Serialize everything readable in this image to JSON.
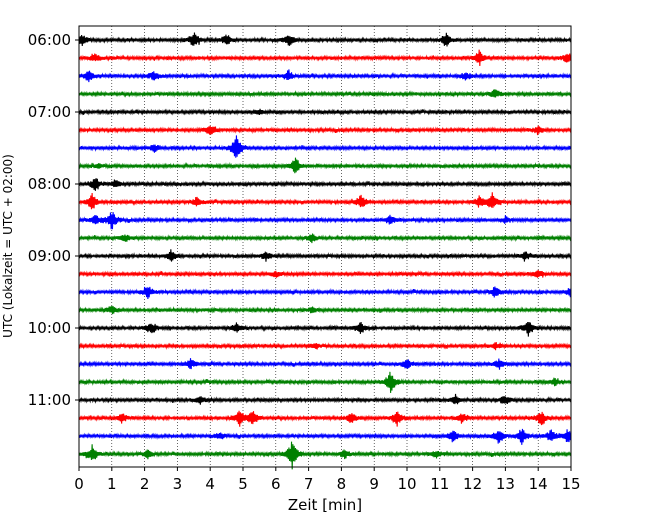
{
  "chart_data": {
    "type": "line",
    "subtype": "helicorder",
    "title": "",
    "xlabel": "Zeit  [min]",
    "ylabel": "UTC (Lokalzeit = UTC + 02:00)",
    "xlim": [
      0,
      15
    ],
    "x_ticks": [
      0,
      1,
      2,
      3,
      4,
      5,
      6,
      7,
      8,
      9,
      10,
      11,
      12,
      13,
      14,
      15
    ],
    "x_tick_labels": [
      "0",
      "1",
      "2",
      "3",
      "4",
      "5",
      "6",
      "7",
      "8",
      "9",
      "10",
      "11",
      "12",
      "13",
      "14",
      "15"
    ],
    "vertical_grid": true,
    "grid_style": "dotted",
    "trace_count": 24,
    "trace_interval_minutes": 15,
    "first_trace_time": "06:00",
    "trace_colors": [
      "#000000",
      "#ff0000",
      "#0000ff",
      "#008000"
    ],
    "y_tick_labels": [
      {
        "trace": 0,
        "label": "06:00"
      },
      {
        "trace": 4,
        "label": "07:00"
      },
      {
        "trace": 8,
        "label": "08:00"
      },
      {
        "trace": 12,
        "label": "09:00"
      },
      {
        "trace": 16,
        "label": "10:00"
      },
      {
        "trace": 20,
        "label": "11:00"
      }
    ],
    "events": [
      {
        "trace": 0,
        "x": 0.1,
        "amp": 0.35
      },
      {
        "trace": 0,
        "x": 3.5,
        "amp": 0.5
      },
      {
        "trace": 0,
        "x": 4.5,
        "amp": 0.35
      },
      {
        "trace": 0,
        "x": 6.4,
        "amp": 0.4
      },
      {
        "trace": 0,
        "x": 11.2,
        "amp": 0.45
      },
      {
        "trace": 1,
        "x": 0.5,
        "amp": 0.25
      },
      {
        "trace": 1,
        "x": 12.2,
        "amp": 0.5
      },
      {
        "trace": 1,
        "x": 14.9,
        "amp": 0.35
      },
      {
        "trace": 2,
        "x": 0.3,
        "amp": 0.35
      },
      {
        "trace": 2,
        "x": 2.3,
        "amp": 0.3
      },
      {
        "trace": 2,
        "x": 6.4,
        "amp": 0.35
      },
      {
        "trace": 2,
        "x": 11.8,
        "amp": 0.25
      },
      {
        "trace": 3,
        "x": 12.7,
        "amp": 0.3
      },
      {
        "trace": 4,
        "x": 5.5,
        "amp": 0.2
      },
      {
        "trace": 5,
        "x": 4.0,
        "amp": 0.35
      },
      {
        "trace": 5,
        "x": 14.0,
        "amp": 0.3
      },
      {
        "trace": 6,
        "x": 4.8,
        "amp": 0.9
      },
      {
        "trace": 6,
        "x": 2.3,
        "amp": 0.25
      },
      {
        "trace": 7,
        "x": 6.6,
        "amp": 0.6
      },
      {
        "trace": 7,
        "x": 0.6,
        "amp": 0.2
      },
      {
        "trace": 8,
        "x": 0.5,
        "amp": 0.45
      },
      {
        "trace": 8,
        "x": 1.1,
        "amp": 0.25
      },
      {
        "trace": 9,
        "x": 0.4,
        "amp": 0.55
      },
      {
        "trace": 9,
        "x": 3.6,
        "amp": 0.35
      },
      {
        "trace": 9,
        "x": 8.6,
        "amp": 0.45
      },
      {
        "trace": 9,
        "x": 12.6,
        "amp": 0.55
      },
      {
        "trace": 9,
        "x": 12.2,
        "amp": 0.35
      },
      {
        "trace": 10,
        "x": 0.5,
        "amp": 0.35
      },
      {
        "trace": 10,
        "x": 1.0,
        "amp": 0.6
      },
      {
        "trace": 10,
        "x": 9.5,
        "amp": 0.3
      },
      {
        "trace": 10,
        "x": 13.0,
        "amp": 0.2
      },
      {
        "trace": 11,
        "x": 1.4,
        "amp": 0.25
      },
      {
        "trace": 11,
        "x": 7.1,
        "amp": 0.3
      },
      {
        "trace": 12,
        "x": 2.8,
        "amp": 0.35
      },
      {
        "trace": 12,
        "x": 5.7,
        "amp": 0.3
      },
      {
        "trace": 12,
        "x": 13.6,
        "amp": 0.3
      },
      {
        "trace": 13,
        "x": 6.0,
        "amp": 0.2
      },
      {
        "trace": 13,
        "x": 14.0,
        "amp": 0.25
      },
      {
        "trace": 14,
        "x": 2.1,
        "amp": 0.4
      },
      {
        "trace": 14,
        "x": 12.7,
        "amp": 0.35
      },
      {
        "trace": 14,
        "x": 15.0,
        "amp": 0.3
      },
      {
        "trace": 15,
        "x": 1.0,
        "amp": 0.25
      },
      {
        "trace": 15,
        "x": 7.1,
        "amp": 0.2
      },
      {
        "trace": 16,
        "x": 2.2,
        "amp": 0.4
      },
      {
        "trace": 16,
        "x": 4.8,
        "amp": 0.3
      },
      {
        "trace": 16,
        "x": 8.6,
        "amp": 0.4
      },
      {
        "trace": 16,
        "x": 13.7,
        "amp": 0.45
      },
      {
        "trace": 17,
        "x": 7.2,
        "amp": 0.2
      },
      {
        "trace": 17,
        "x": 12.7,
        "amp": 0.2
      },
      {
        "trace": 18,
        "x": 3.4,
        "amp": 0.3
      },
      {
        "trace": 18,
        "x": 10.0,
        "amp": 0.35
      },
      {
        "trace": 18,
        "x": 12.8,
        "amp": 0.3
      },
      {
        "trace": 19,
        "x": 9.5,
        "amp": 0.7
      },
      {
        "trace": 19,
        "x": 14.5,
        "amp": 0.25
      },
      {
        "trace": 20,
        "x": 3.7,
        "amp": 0.25
      },
      {
        "trace": 20,
        "x": 11.5,
        "amp": 0.3
      },
      {
        "trace": 20,
        "x": 13.0,
        "amp": 0.35
      },
      {
        "trace": 21,
        "x": 1.3,
        "amp": 0.3
      },
      {
        "trace": 21,
        "x": 4.9,
        "amp": 0.55
      },
      {
        "trace": 21,
        "x": 5.3,
        "amp": 0.45
      },
      {
        "trace": 21,
        "x": 8.3,
        "amp": 0.35
      },
      {
        "trace": 21,
        "x": 9.7,
        "amp": 0.5
      },
      {
        "trace": 21,
        "x": 11.7,
        "amp": 0.35
      },
      {
        "trace": 21,
        "x": 14.1,
        "amp": 0.45
      },
      {
        "trace": 22,
        "x": 11.4,
        "amp": 0.4
      },
      {
        "trace": 22,
        "x": 12.8,
        "amp": 0.45
      },
      {
        "trace": 22,
        "x": 13.5,
        "amp": 0.5
      },
      {
        "trace": 22,
        "x": 14.4,
        "amp": 0.45
      },
      {
        "trace": 22,
        "x": 14.9,
        "amp": 0.45
      },
      {
        "trace": 22,
        "x": 4.3,
        "amp": 0.2
      },
      {
        "trace": 23,
        "x": 0.4,
        "amp": 0.55
      },
      {
        "trace": 23,
        "x": 6.5,
        "amp": 0.9
      },
      {
        "trace": 23,
        "x": 2.1,
        "amp": 0.25
      },
      {
        "trace": 23,
        "x": 8.1,
        "amp": 0.3
      },
      {
        "trace": 23,
        "x": 10.9,
        "amp": 0.25
      }
    ]
  }
}
